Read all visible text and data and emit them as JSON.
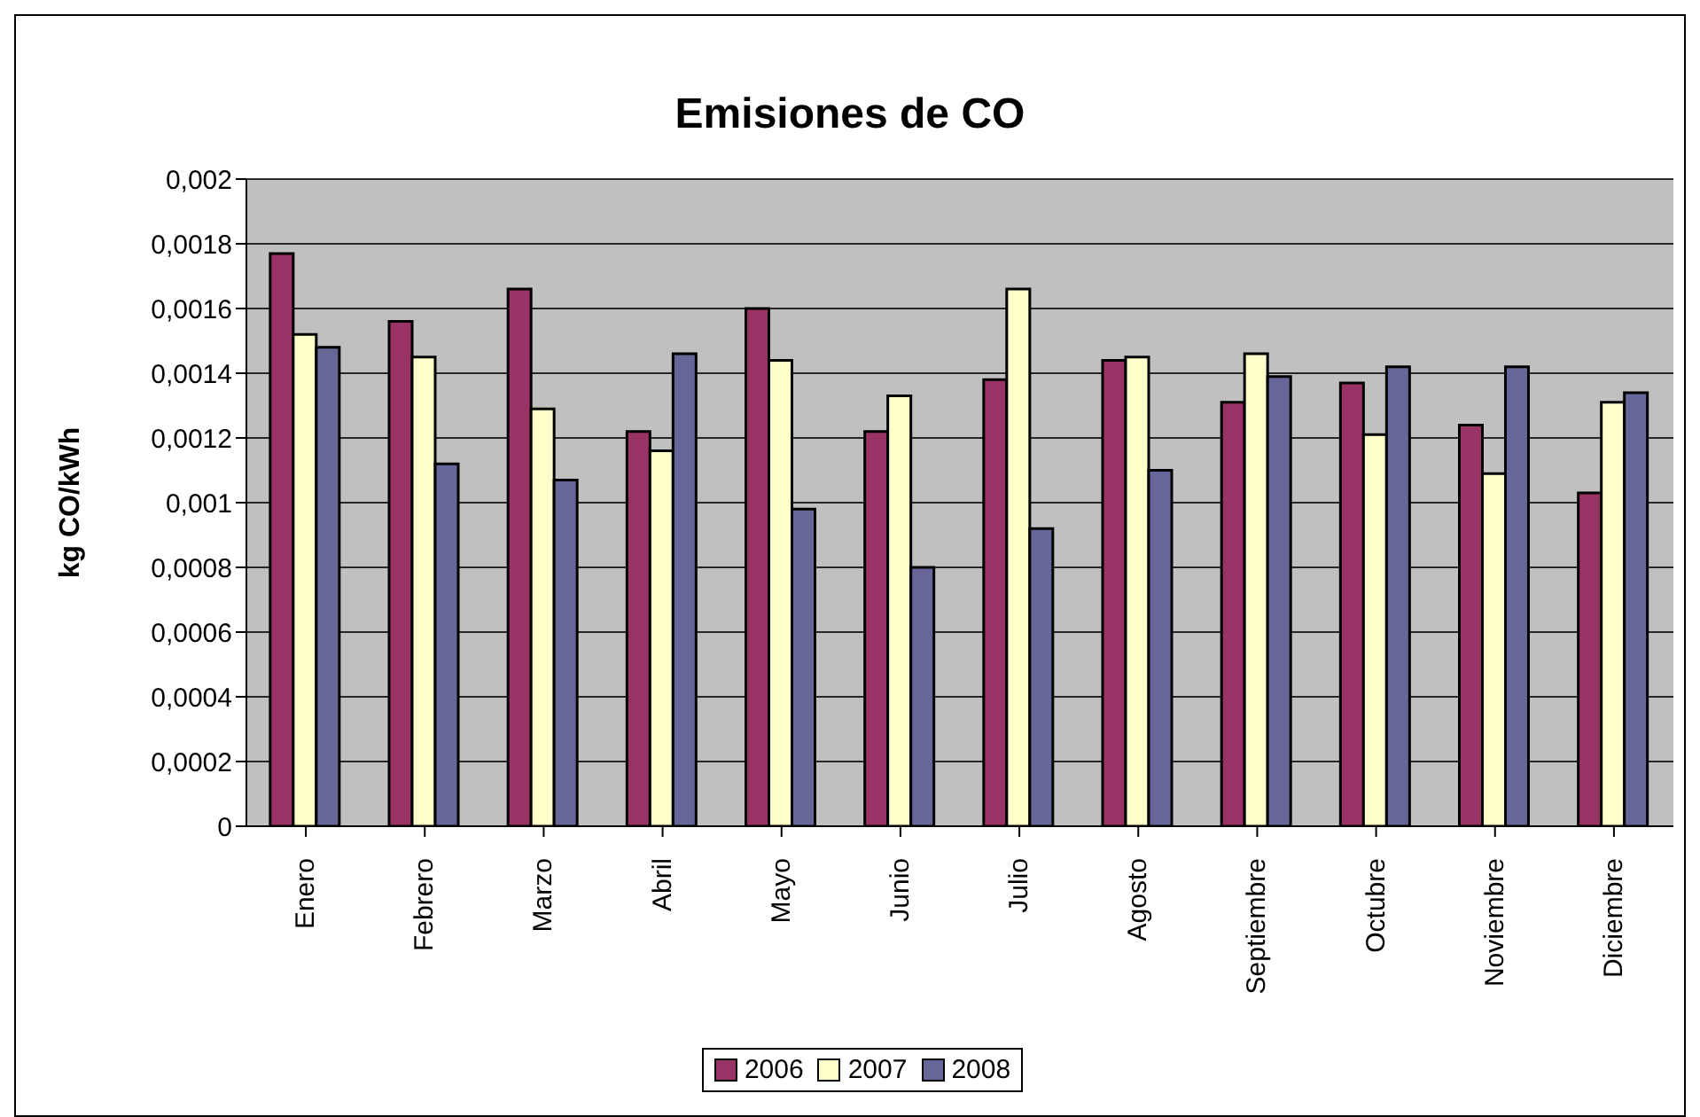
{
  "chart_data": {
    "type": "bar",
    "title": "Emisiones de CO",
    "ylabel": "kg CO/kWh",
    "categories": [
      "Enero",
      "Febrero",
      "Marzo",
      "Abril",
      "Mayo",
      "Junio",
      "Julio",
      "Agosto",
      "Septiembre",
      "Octubre",
      "Noviembre",
      "Diciembre"
    ],
    "series": [
      {
        "name": "2006",
        "color": "#993366",
        "values": [
          0.00177,
          0.00156,
          0.00166,
          0.00122,
          0.0016,
          0.00122,
          0.00138,
          0.00144,
          0.00131,
          0.00137,
          0.00124,
          0.00103
        ]
      },
      {
        "name": "2007",
        "color": "#ffffcc",
        "values": [
          0.00152,
          0.00145,
          0.00129,
          0.00116,
          0.00144,
          0.00133,
          0.00166,
          0.00145,
          0.00146,
          0.00121,
          0.00109,
          0.00131
        ]
      },
      {
        "name": "2008",
        "color": "#666699",
        "values": [
          0.00148,
          0.00112,
          0.00107,
          0.00146,
          0.00098,
          0.0008,
          0.00092,
          0.0011,
          0.00139,
          0.00142,
          0.00142,
          0.00134
        ]
      }
    ],
    "ylim": [
      0,
      0.002
    ],
    "yticks": [
      0,
      {
        "value": 0.0002,
        "label": "0,0002"
      },
      {
        "value": 0.0004,
        "label": "0,0004"
      },
      {
        "value": 0.0006,
        "label": "0,0006"
      },
      {
        "value": 0.0008,
        "label": "0,0008"
      },
      {
        "value": 0.001,
        "label": "0,001"
      },
      {
        "value": 0.0012,
        "label": "0,0012"
      },
      {
        "value": 0.0014,
        "label": "0,0014"
      },
      {
        "value": 0.0016,
        "label": "0,0016"
      },
      {
        "value": 0.0018,
        "label": "0,0018"
      },
      {
        "value": 0.002,
        "label": "0,002"
      }
    ],
    "grid": "y",
    "legend": "bottom"
  }
}
